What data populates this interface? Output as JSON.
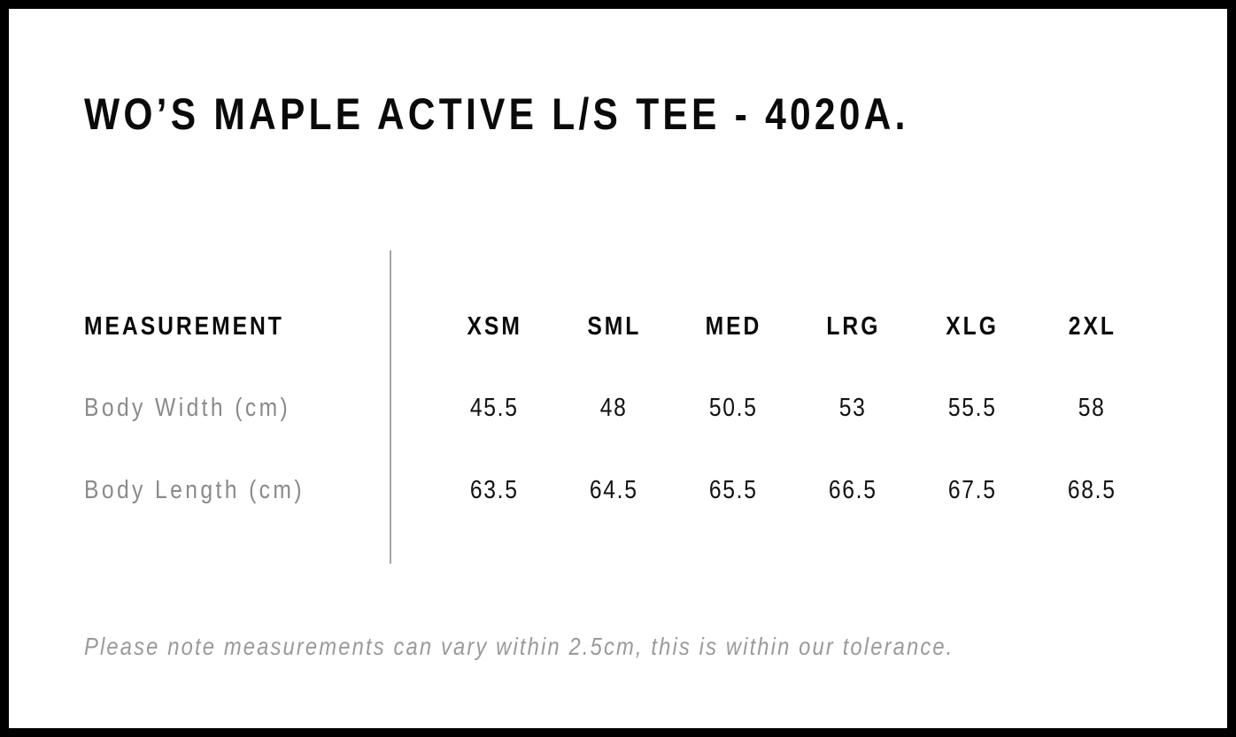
{
  "page": {
    "title": "WO’S MAPLE ACTIVE L/S TEE - 4020A."
  },
  "size_chart": {
    "measurement_label": "MEASUREMENT",
    "size_headers": [
      "XSM",
      "SML",
      "MED",
      "LRG",
      "XLG",
      "2XL"
    ],
    "rows": [
      {
        "label": "Body Width (cm)",
        "values": [
          "45.5",
          "48",
          "50.5",
          "53",
          "55.5",
          "58"
        ]
      },
      {
        "label": "Body Length (cm)",
        "values": [
          "63.5",
          "64.5",
          "65.5",
          "66.5",
          "67.5",
          "68.5"
        ]
      }
    ]
  },
  "footer": {
    "note": "Please note measurements can vary within 2.5cm, this is within our tolerance."
  },
  "colors": {
    "frame_border": "#000000",
    "heading_text": "#0a0a0a",
    "value_text": "#111111",
    "label_gray": "#8a8a8a",
    "note_gray": "#9a9a9a",
    "divider_gray": "#a3a3a3",
    "background": "#ffffff"
  }
}
